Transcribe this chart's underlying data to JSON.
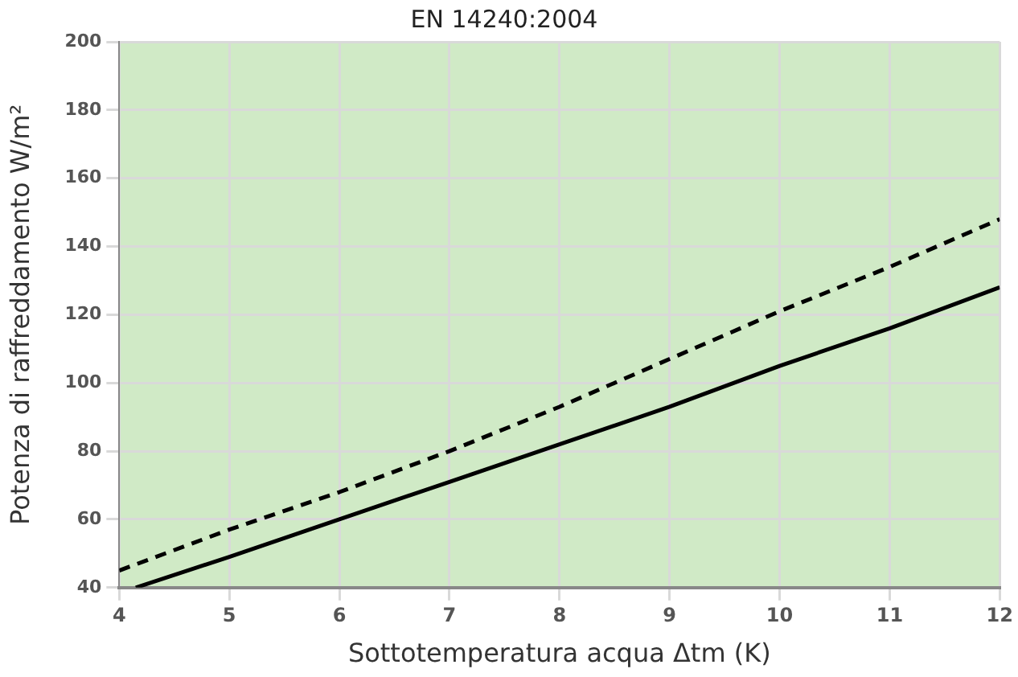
{
  "chart_data": {
    "type": "line",
    "title": "EN 14240:2004",
    "xlabel": "Sottotemperatura acqua Δtm (K)",
    "ylabel": "Potenza di raffreddamento W/m²",
    "xlim": [
      4,
      12
    ],
    "xticks": [
      4,
      5,
      6,
      7,
      8,
      9,
      10,
      11,
      12
    ],
    "ylim": [
      40,
      200
    ],
    "yticks": [
      40,
      60,
      80,
      100,
      120,
      140,
      160,
      180,
      200
    ],
    "grid": true,
    "legend": false,
    "marker": "none",
    "series": [
      {
        "color": "#000000",
        "line_style": "solid",
        "x": [
          4.15,
          5,
          6,
          7,
          8,
          9,
          10,
          11,
          12
        ],
        "values": [
          40,
          49,
          60,
          71,
          82,
          93,
          105,
          116,
          128
        ]
      },
      {
        "color": "#000000",
        "line_style": "dashed",
        "x": [
          4,
          5,
          6,
          7,
          8,
          9,
          10,
          11,
          12
        ],
        "values": [
          45,
          57,
          68,
          80,
          93,
          107,
          121,
          134,
          148
        ]
      }
    ]
  }
}
